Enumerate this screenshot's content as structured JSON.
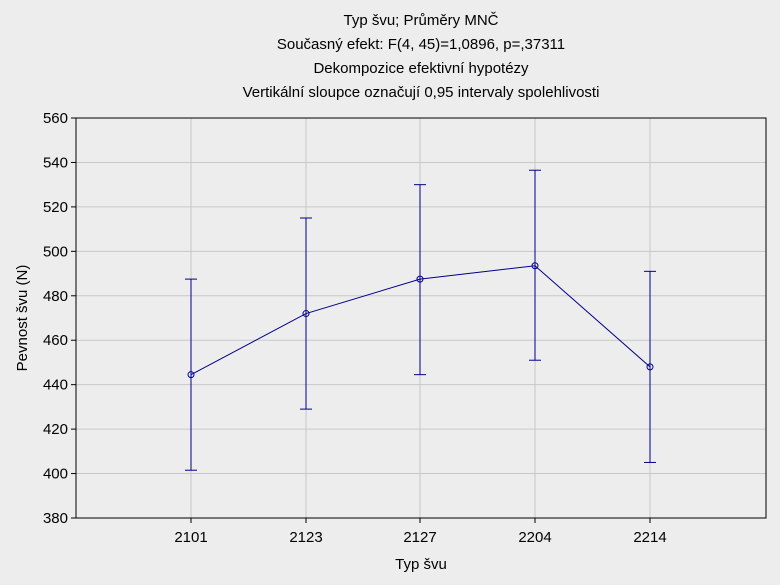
{
  "chart_data": {
    "type": "line",
    "title_lines": [
      "Typ švu; Průměry MNČ",
      "Současný efekt: F(4, 45)=1,0896, p=,37311",
      "Dekompozice efektivní hypotézy",
      "Vertikální sloupce označují 0,95 intervaly spolehlivosti"
    ],
    "xlabel": "Typ švu",
    "ylabel": "Pevnost švu (N)",
    "categories": [
      "2101",
      "2123",
      "2127",
      "2204",
      "2214"
    ],
    "series": [
      {
        "values": [
          444.5,
          472,
          487.5,
          493.5,
          448
        ],
        "ci_lower": [
          401.5,
          429,
          444.5,
          451,
          405
        ],
        "ci_upper": [
          487.5,
          515,
          530,
          536.5,
          491
        ]
      }
    ],
    "ylim": [
      380,
      560
    ],
    "yticks": [
      380,
      400,
      420,
      440,
      460,
      480,
      500,
      520,
      540,
      560
    ],
    "grid": true,
    "colors": {
      "series": "#00008b",
      "grid": "#c8c8c8",
      "axis": "#000000"
    }
  }
}
